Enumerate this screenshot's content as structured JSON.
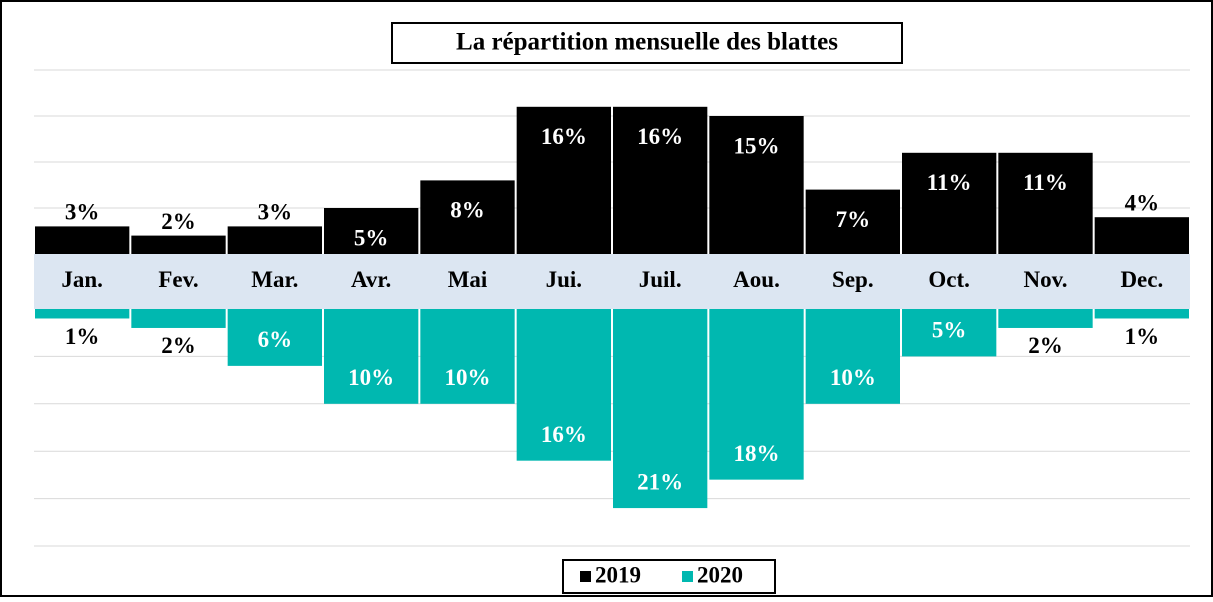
{
  "chart_data": {
    "type": "bar",
    "title": "La répartition mensuelle des blattes",
    "categories": [
      "Jan.",
      "Fev.",
      "Mar.",
      "Avr.",
      "Mai",
      "Jui.",
      "Juil.",
      "Aou.",
      "Sep.",
      "Oct.",
      "Nov.",
      "Dec."
    ],
    "series": [
      {
        "name": "2019",
        "color": "#000000",
        "values": [
          3,
          2,
          3,
          5,
          8,
          16,
          16,
          15,
          7,
          11,
          11,
          4
        ],
        "value_labels": [
          "3%",
          "2%",
          "3%",
          "5%",
          "8%",
          "16%",
          "16%",
          "15%",
          "7%",
          "11%",
          "11%",
          "4%"
        ]
      },
      {
        "name": "2020",
        "color": "#00b8b0",
        "axis": "y2",
        "values": [
          1,
          2,
          6,
          10,
          10,
          16,
          21,
          18,
          10,
          5,
          2,
          1
        ],
        "value_labels": [
          "1%",
          "2%",
          "6%",
          "10%",
          "10%",
          "16%",
          "21%",
          "18%",
          "10%",
          "5%",
          "2%",
          "1%"
        ]
      }
    ],
    "ylim": [
      0,
      20
    ],
    "yticks": [
      5,
      10,
      15,
      20
    ],
    "y2lim": [
      0,
      25
    ],
    "y2ticks": [
      5,
      10,
      15,
      20,
      25
    ],
    "grid": true,
    "legend": "bottom"
  }
}
